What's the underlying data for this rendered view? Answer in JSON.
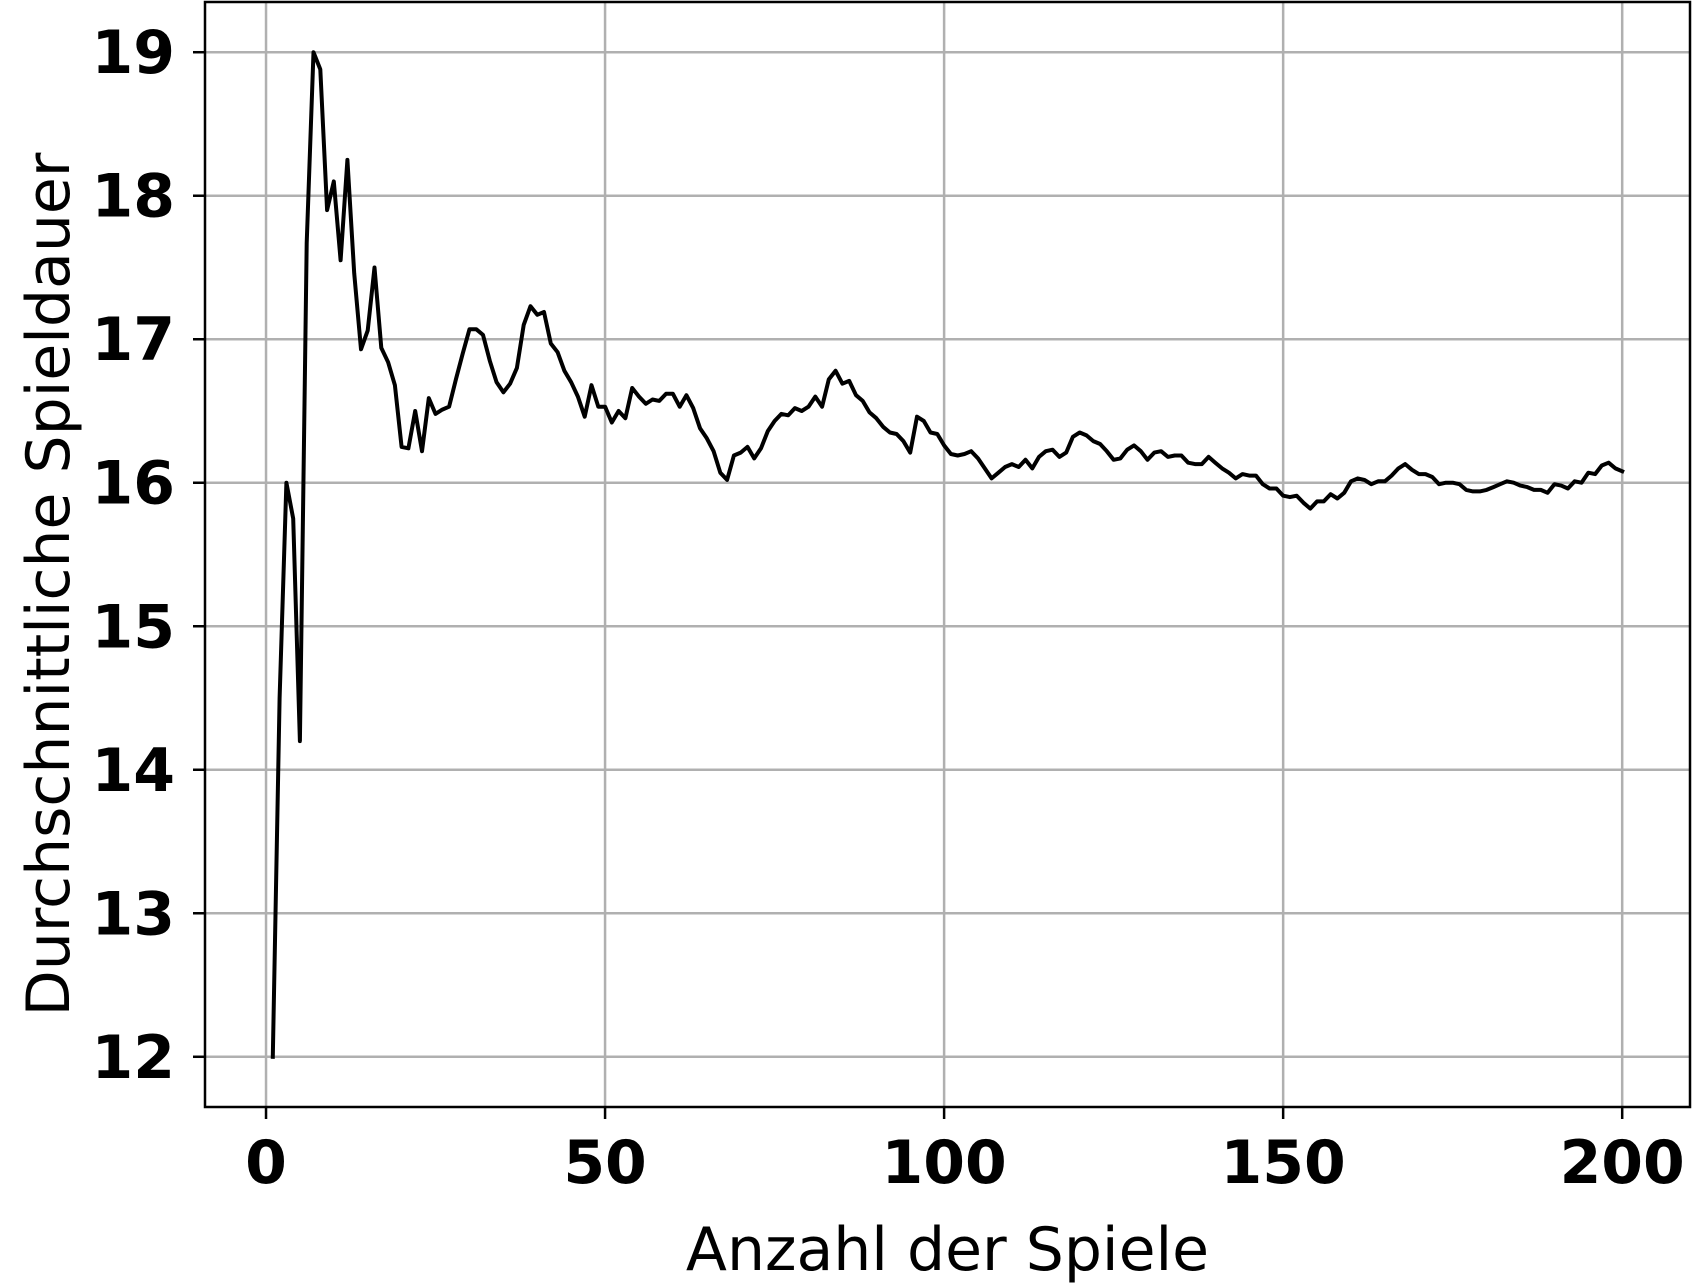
{
  "chart_data": {
    "type": "line",
    "title": "",
    "xlabel": "Anzahl der Spiele",
    "ylabel": "Durchschnittliche Spieldauer",
    "xlim": [
      -9,
      210
    ],
    "ylim": [
      11.65,
      19.35
    ],
    "xticks": [
      0,
      50,
      100,
      150,
      200
    ],
    "yticks": [
      12,
      13,
      14,
      15,
      16,
      17,
      18,
      19
    ],
    "grid": true,
    "legend": "none",
    "line_color": "#000000",
    "grid_color": "#b0b0b0",
    "series": [
      {
        "x": [
          1,
          2,
          3,
          4,
          5,
          6,
          7,
          8,
          9,
          10,
          11,
          12,
          13,
          14,
          15,
          16,
          17,
          18,
          19,
          20,
          21,
          22,
          23,
          24,
          25,
          26,
          27,
          28,
          29,
          30,
          31,
          32,
          33,
          34,
          35,
          36,
          37,
          38,
          39,
          40,
          41,
          42,
          43,
          44,
          45,
          46,
          47,
          48,
          49,
          50,
          51,
          52,
          53,
          54,
          55,
          56,
          57,
          58,
          59,
          60,
          61,
          62,
          63,
          64,
          65,
          66,
          67,
          68,
          69,
          70,
          71,
          72,
          73,
          74,
          75,
          76,
          77,
          78,
          79,
          80,
          81,
          82,
          83,
          84,
          85,
          86,
          87,
          88,
          89,
          90,
          91,
          92,
          93,
          94,
          95,
          96,
          97,
          98,
          99,
          100,
          101,
          102,
          103,
          104,
          105,
          106,
          107,
          108,
          109,
          110,
          111,
          112,
          113,
          114,
          115,
          116,
          117,
          118,
          119,
          120,
          121,
          122,
          123,
          124,
          125,
          126,
          127,
          128,
          129,
          130,
          131,
          132,
          133,
          134,
          135,
          136,
          137,
          138,
          139,
          140,
          141,
          142,
          143,
          144,
          145,
          146,
          147,
          148,
          149,
          150,
          151,
          152,
          153,
          154,
          155,
          156,
          157,
          158,
          159,
          160,
          161,
          162,
          163,
          164,
          165,
          166,
          167,
          168,
          169,
          170,
          171,
          172,
          173,
          174,
          175,
          176,
          177,
          178,
          179,
          180,
          181,
          182,
          183,
          184,
          185,
          186,
          187,
          188,
          189,
          190,
          191,
          192,
          193,
          194,
          195,
          196,
          197,
          198,
          199,
          200
        ],
        "y": [
          12.0,
          14.5,
          16.0,
          15.75,
          14.2,
          17.67,
          19.0,
          18.88,
          17.9,
          18.1,
          17.55,
          18.25,
          17.46,
          16.93,
          17.06,
          17.5,
          16.94,
          16.84,
          16.68,
          16.25,
          16.24,
          16.5,
          16.22,
          16.59,
          16.48,
          16.51,
          16.53,
          16.72,
          16.9,
          17.07,
          17.07,
          17.03,
          16.85,
          16.7,
          16.63,
          16.69,
          16.8,
          17.1,
          17.23,
          17.17,
          17.19,
          16.97,
          16.91,
          16.78,
          16.7,
          16.6,
          16.46,
          16.68,
          16.53,
          16.53,
          16.42,
          16.5,
          16.45,
          16.66,
          16.6,
          16.55,
          16.58,
          16.57,
          16.62,
          16.62,
          16.53,
          16.61,
          16.52,
          16.38,
          16.31,
          16.22,
          16.07,
          16.02,
          16.19,
          16.21,
          16.25,
          16.17,
          16.24,
          16.36,
          16.43,
          16.48,
          16.47,
          16.52,
          16.5,
          16.53,
          16.6,
          16.53,
          16.72,
          16.78,
          16.69,
          16.71,
          16.61,
          16.57,
          16.49,
          16.45,
          16.39,
          16.35,
          16.34,
          16.29,
          16.21,
          16.46,
          16.43,
          16.35,
          16.34,
          16.26,
          16.2,
          16.19,
          16.2,
          16.22,
          16.17,
          16.1,
          16.03,
          16.07,
          16.11,
          16.13,
          16.11,
          16.16,
          16.1,
          16.18,
          16.22,
          16.23,
          16.18,
          16.21,
          16.32,
          16.35,
          16.33,
          16.29,
          16.27,
          16.22,
          16.16,
          16.17,
          16.23,
          16.26,
          16.22,
          16.16,
          16.21,
          16.22,
          16.18,
          16.19,
          16.19,
          16.14,
          16.13,
          16.13,
          16.18,
          16.14,
          16.1,
          16.07,
          16.03,
          16.06,
          16.05,
          16.05,
          15.99,
          15.96,
          15.96,
          15.91,
          15.9,
          15.91,
          15.86,
          15.82,
          15.87,
          15.87,
          15.92,
          15.89,
          15.93,
          16.01,
          16.03,
          16.02,
          15.99,
          16.01,
          16.01,
          16.05,
          16.1,
          16.13,
          16.09,
          16.06,
          16.06,
          16.04,
          15.99,
          16.0,
          16.0,
          15.99,
          15.95,
          15.94,
          15.94,
          15.95,
          15.97,
          15.99,
          16.01,
          16.0,
          15.98,
          15.97,
          15.95,
          15.95,
          15.93,
          15.99,
          15.98,
          15.96,
          16.01,
          16.0,
          16.07,
          16.06,
          16.12,
          16.14,
          16.1,
          16.08
        ]
      }
    ]
  }
}
